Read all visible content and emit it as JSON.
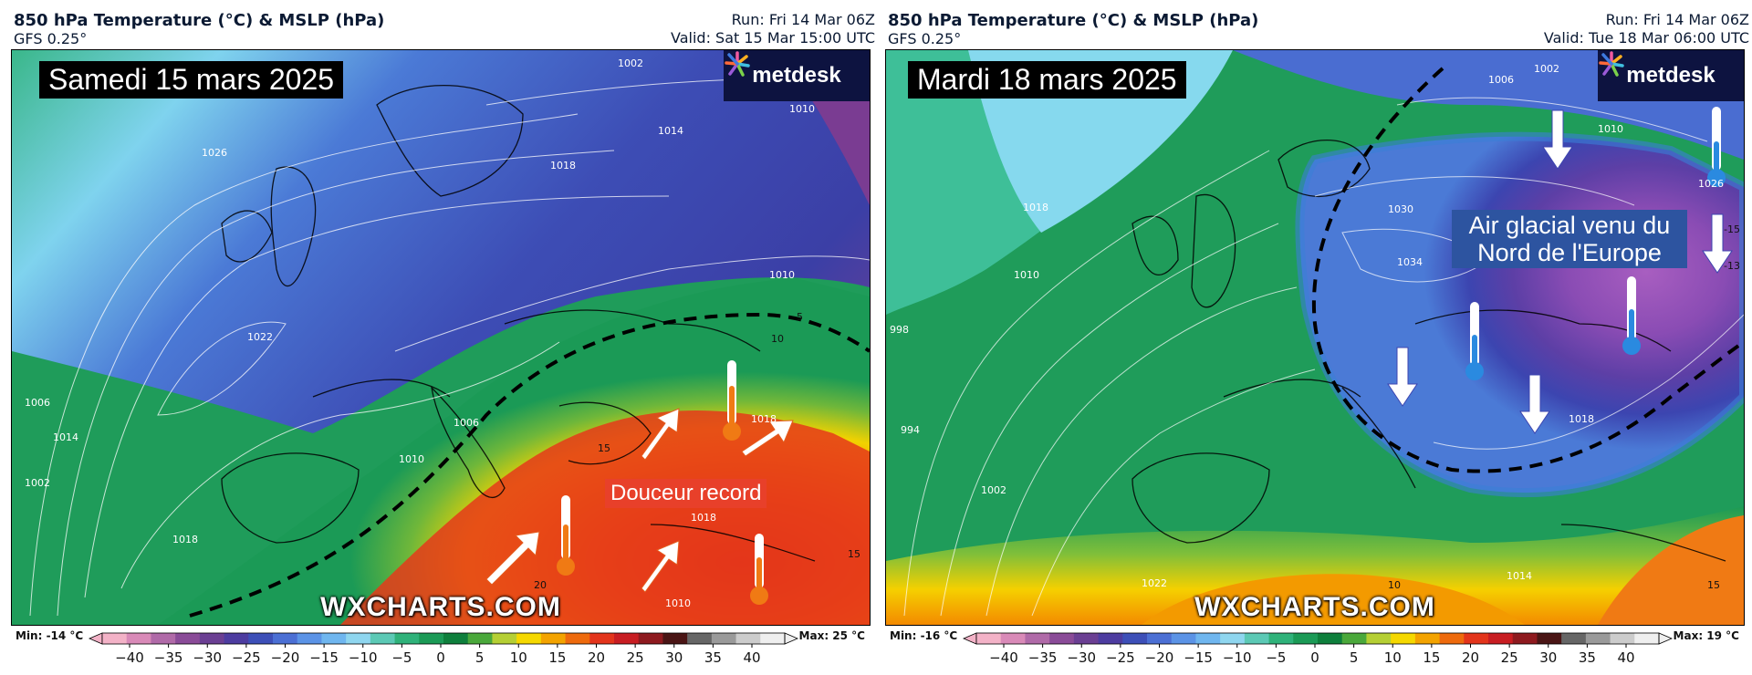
{
  "colors": {
    "scale": [
      "#f3b2c7",
      "#d98ab8",
      "#b06aa8",
      "#8a4b98",
      "#6b3f93",
      "#4d3ca0",
      "#3d4fb8",
      "#4b6fd4",
      "#5b93e6",
      "#6fb6ef",
      "#8fd6ef",
      "#5cc9b5",
      "#2fb27a",
      "#1b9a56",
      "#0e7f3c",
      "#4aa83b",
      "#b5cf34",
      "#f5d800",
      "#f3a300",
      "#ee6a0d",
      "#e3341b",
      "#c81d22",
      "#8e1a1f",
      "#4a1515",
      "#666666",
      "#9a9a9a",
      "#cccccc",
      "#efefef"
    ],
    "annot_red": "#e8402a",
    "annot_blue": "#2d54a0",
    "logo_bg": "#0d1340"
  },
  "legend": {
    "ticks": [
      "−40",
      "−35",
      "−30",
      "−25",
      "−20",
      "−15",
      "−10",
      "−5",
      "0",
      "5",
      "10",
      "15",
      "20",
      "25",
      "30",
      "35",
      "40"
    ]
  },
  "panels": [
    {
      "title": "850 hPa Temperature (°C) & MSLP (hPa)",
      "model": "GFS 0.25°",
      "run": "Run: Fri 14 Mar 06Z",
      "valid": "Valid: Sat 15 Mar 15:00 UTC",
      "date_label": "Samedi 15 mars 2025",
      "logo": "metdesk",
      "watermark": "WXCHARTS.COM",
      "annotation": "Douceur record",
      "min": "Min: -14 °C",
      "max": "Max: 25 °C",
      "isobar_labels": [
        "1002",
        "1010",
        "1014",
        "1018",
        "1026",
        "1022",
        "1010",
        "1006",
        "1018",
        "1010",
        "1006",
        "1018",
        "1014",
        "1002",
        "1018",
        "1010"
      ],
      "contour_labels": [
        "5",
        "10",
        "15",
        "20",
        "15"
      ],
      "icons": {
        "arrow": "arrow-icon",
        "thermometer": "thermometer-warm-icon"
      }
    },
    {
      "title": "850 hPa Temperature (°C) & MSLP (hPa)",
      "model": "GFS 0.25°",
      "run": "Run: Fri 14 Mar 06Z",
      "valid": "Valid: Tue 18 Mar 06:00 UTC",
      "date_label": "Mardi 18 mars 2025",
      "logo": "metdesk",
      "watermark": "WXCHARTS.COM",
      "annotation_lines": [
        "Air glacial venu du",
        "Nord de l'Europe"
      ],
      "min": "Min: -16 °C",
      "max": "Max: 19 °C",
      "isobar_labels": [
        "1006",
        "1002",
        "1010",
        "1018",
        "1010",
        "998",
        "1030",
        "1034",
        "994",
        "1002",
        "1018",
        "1014",
        "1022",
        "1026"
      ],
      "contour_labels": [
        "-15",
        "-13",
        "10",
        "15"
      ],
      "icons": {
        "arrow": "arrow-icon",
        "thermometer": "thermometer-cold-icon"
      }
    }
  ]
}
